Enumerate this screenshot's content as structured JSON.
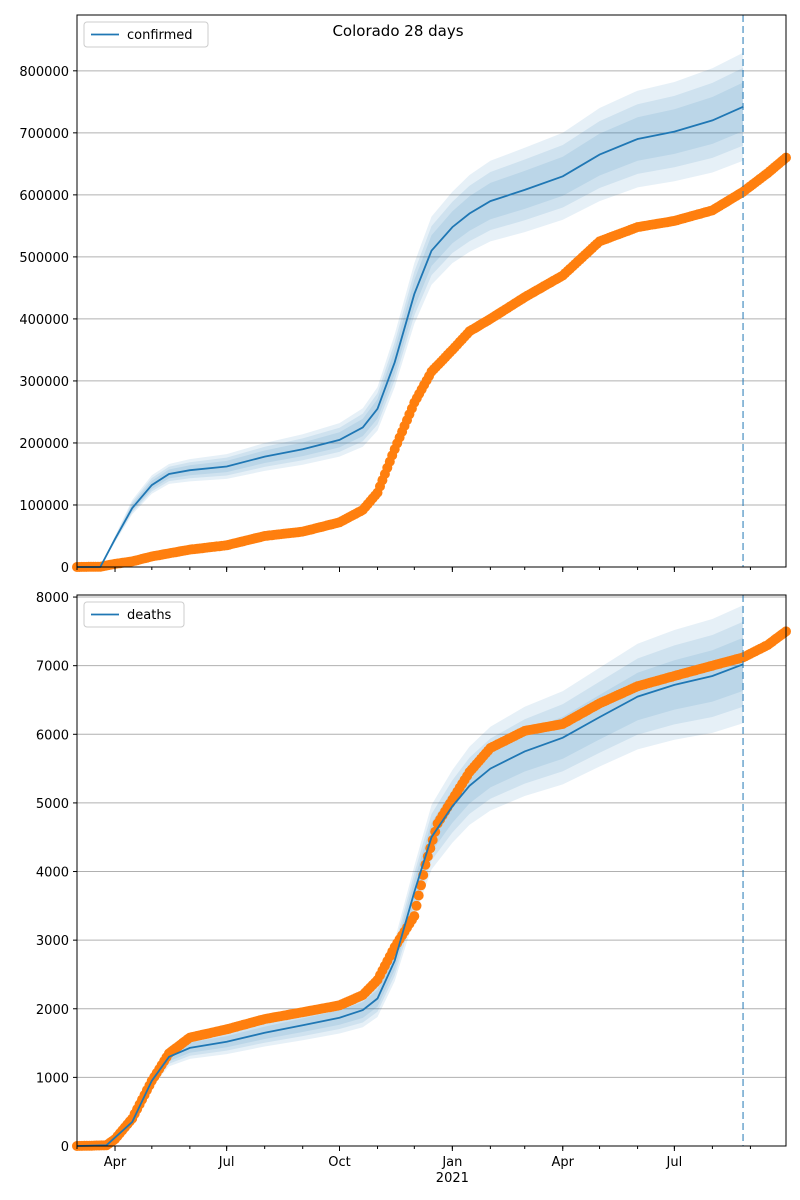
{
  "figure_title": "Colorado 28 days",
  "x_tick_labels": [
    {
      "date": "2020-04-01",
      "label": "Apr"
    },
    {
      "date": "2020-07-01",
      "label": "Jul"
    },
    {
      "date": "2020-10-01",
      "label": "Oct"
    },
    {
      "date": "2021-01-01",
      "label": "Jan"
    },
    {
      "date": "2021-04-01",
      "label": "Apr"
    },
    {
      "date": "2021-07-01",
      "label": "Jul"
    }
  ],
  "x_year_label": "2021",
  "colors": {
    "model_line": "#1f77b4",
    "band": "#1f77b4",
    "observed": "#ff7f0e",
    "grid": "#b0b0b0"
  },
  "chart_data": [
    {
      "type": "line",
      "panel": "confirmed",
      "title": "Colorado 28 days",
      "xlim": [
        "2020-03-01",
        "2021-09-30"
      ],
      "ylim": [
        0,
        890000
      ],
      "y_ticks": [
        0,
        100000,
        200000,
        300000,
        400000,
        500000,
        600000,
        700000,
        800000
      ],
      "grid": "horizontal",
      "legend": "top-left",
      "forecast_start": "2021-08-26",
      "series": [
        {
          "name": "confirmed",
          "kind": "model median with 50/80/95% bands",
          "points": [
            [
              "2020-03-01",
              0,
              0,
              0
            ],
            [
              "2020-03-20",
              0,
              0,
              0
            ],
            [
              "2020-04-01",
              45000,
              40000,
              50000
            ],
            [
              "2020-04-15",
              95000,
              85000,
              108000
            ],
            [
              "2020-05-01",
              132000,
              118000,
              148000
            ],
            [
              "2020-05-15",
              150000,
              134000,
              166000
            ],
            [
              "2020-06-01",
              156000,
              138000,
              174000
            ],
            [
              "2020-07-01",
              162000,
              142000,
              182000
            ],
            [
              "2020-08-01",
              178000,
              155000,
              200000
            ],
            [
              "2020-09-01",
              190000,
              165000,
              214000
            ],
            [
              "2020-10-01",
              205000,
              178000,
              232000
            ],
            [
              "2020-10-20",
              225000,
              194000,
              256000
            ],
            [
              "2020-11-01",
              255000,
              220000,
              290000
            ],
            [
              "2020-11-15",
              330000,
              290000,
              375000
            ],
            [
              "2020-12-01",
              440000,
              392000,
              490000
            ],
            [
              "2020-12-15",
              510000,
              455000,
              565000
            ],
            [
              "2021-01-01",
              548000,
              490000,
              605000
            ],
            [
              "2021-01-15",
              570000,
              508000,
              632000
            ],
            [
              "2021-02-01",
              590000,
              525000,
              655000
            ],
            [
              "2021-03-01",
              608000,
              540000,
              676000
            ],
            [
              "2021-04-01",
              630000,
              560000,
              700000
            ],
            [
              "2021-05-01",
              665000,
              590000,
              740000
            ],
            [
              "2021-06-01",
              690000,
              612000,
              768000
            ],
            [
              "2021-07-01",
              702000,
              622000,
              782000
            ],
            [
              "2021-08-01",
              720000,
              636000,
              804000
            ],
            [
              "2021-08-26",
              742000,
              655000,
              829000
            ]
          ]
        },
        {
          "name": "",
          "kind": "observed",
          "points": [
            [
              "2020-03-01",
              0
            ],
            [
              "2020-03-20",
              500
            ],
            [
              "2020-04-01",
              5000
            ],
            [
              "2020-04-15",
              9000
            ],
            [
              "2020-05-01",
              17000
            ],
            [
              "2020-06-01",
              28000
            ],
            [
              "2020-07-01",
              35000
            ],
            [
              "2020-08-01",
              50000
            ],
            [
              "2020-09-01",
              57000
            ],
            [
              "2020-10-01",
              72000
            ],
            [
              "2020-10-20",
              92000
            ],
            [
              "2020-11-01",
              120000
            ],
            [
              "2020-11-15",
              190000
            ],
            [
              "2020-12-01",
              265000
            ],
            [
              "2020-12-15",
              315000
            ],
            [
              "2021-01-01",
              350000
            ],
            [
              "2021-01-15",
              380000
            ],
            [
              "2021-02-01",
              400000
            ],
            [
              "2021-03-01",
              435000
            ],
            [
              "2021-04-01",
              470000
            ],
            [
              "2021-05-01",
              525000
            ],
            [
              "2021-06-01",
              548000
            ],
            [
              "2021-07-01",
              558000
            ],
            [
              "2021-08-01",
              575000
            ],
            [
              "2021-08-26",
              605000
            ],
            [
              "2021-09-15",
              635000
            ],
            [
              "2021-09-30",
              660000
            ]
          ]
        }
      ]
    },
    {
      "type": "line",
      "panel": "deaths",
      "xlim": [
        "2020-03-01",
        "2021-09-30"
      ],
      "ylim": [
        0,
        8030
      ],
      "y_ticks": [
        0,
        1000,
        2000,
        3000,
        4000,
        5000,
        6000,
        7000,
        8000
      ],
      "grid": "horizontal",
      "legend": "top-left",
      "forecast_start": "2021-08-26",
      "series": [
        {
          "name": "deaths",
          "kind": "model median with 50/80/95% bands",
          "points": [
            [
              "2020-03-01",
              0,
              0,
              0
            ],
            [
              "2020-03-25",
              10,
              10,
              10
            ],
            [
              "2020-04-15",
              350,
              320,
              390
            ],
            [
              "2020-05-01",
              950,
              860,
              1050
            ],
            [
              "2020-05-15",
              1300,
              1160,
              1450
            ],
            [
              "2020-06-01",
              1430,
              1270,
              1600
            ],
            [
              "2020-07-01",
              1520,
              1340,
              1700
            ],
            [
              "2020-08-01",
              1650,
              1450,
              1850
            ],
            [
              "2020-09-01",
              1760,
              1540,
              1980
            ],
            [
              "2020-10-01",
              1870,
              1640,
              2110
            ],
            [
              "2020-10-20",
              1980,
              1730,
              2240
            ],
            [
              "2020-11-01",
              2150,
              1880,
              2430
            ],
            [
              "2020-11-15",
              2700,
              2400,
              3000
            ],
            [
              "2020-12-01",
              3700,
              3320,
              4080
            ],
            [
              "2020-12-15",
              4500,
              4030,
              4970
            ],
            [
              "2021-01-01",
              4950,
              4420,
              5480
            ],
            [
              "2021-01-15",
              5250,
              4680,
              5820
            ],
            [
              "2021-02-01",
              5500,
              4890,
              6110
            ],
            [
              "2021-03-01",
              5750,
              5100,
              6400
            ],
            [
              "2021-04-01",
              5950,
              5270,
              6630
            ],
            [
              "2021-05-01",
              6250,
              5530,
              6970
            ],
            [
              "2021-06-01",
              6550,
              5780,
              7320
            ],
            [
              "2021-07-01",
              6720,
              5920,
              7520
            ],
            [
              "2021-08-01",
              6850,
              6020,
              7680
            ],
            [
              "2021-08-26",
              7020,
              6160,
              7880
            ]
          ]
        },
        {
          "name": "",
          "kind": "observed",
          "points": [
            [
              "2020-03-01",
              0
            ],
            [
              "2020-03-25",
              10
            ],
            [
              "2020-04-01",
              100
            ],
            [
              "2020-04-15",
              400
            ],
            [
              "2020-05-01",
              950
            ],
            [
              "2020-05-15",
              1350
            ],
            [
              "2020-06-01",
              1580
            ],
            [
              "2020-07-01",
              1700
            ],
            [
              "2020-08-01",
              1850
            ],
            [
              "2020-09-01",
              1950
            ],
            [
              "2020-10-01",
              2050
            ],
            [
              "2020-10-20",
              2200
            ],
            [
              "2020-11-01",
              2420
            ],
            [
              "2020-11-15",
              2900
            ],
            [
              "2020-12-01",
              3350
            ],
            [
              "2020-12-10",
              4100
            ],
            [
              "2020-12-20",
              4700
            ],
            [
              "2021-01-01",
              5050
            ],
            [
              "2021-01-15",
              5450
            ],
            [
              "2021-02-01",
              5800
            ],
            [
              "2021-03-01",
              6050
            ],
            [
              "2021-04-01",
              6150
            ],
            [
              "2021-05-01",
              6450
            ],
            [
              "2021-06-01",
              6700
            ],
            [
              "2021-07-01",
              6850
            ],
            [
              "2021-08-01",
              7000
            ],
            [
              "2021-08-26",
              7120
            ],
            [
              "2021-09-15",
              7300
            ],
            [
              "2021-09-30",
              7500
            ]
          ]
        }
      ]
    }
  ]
}
